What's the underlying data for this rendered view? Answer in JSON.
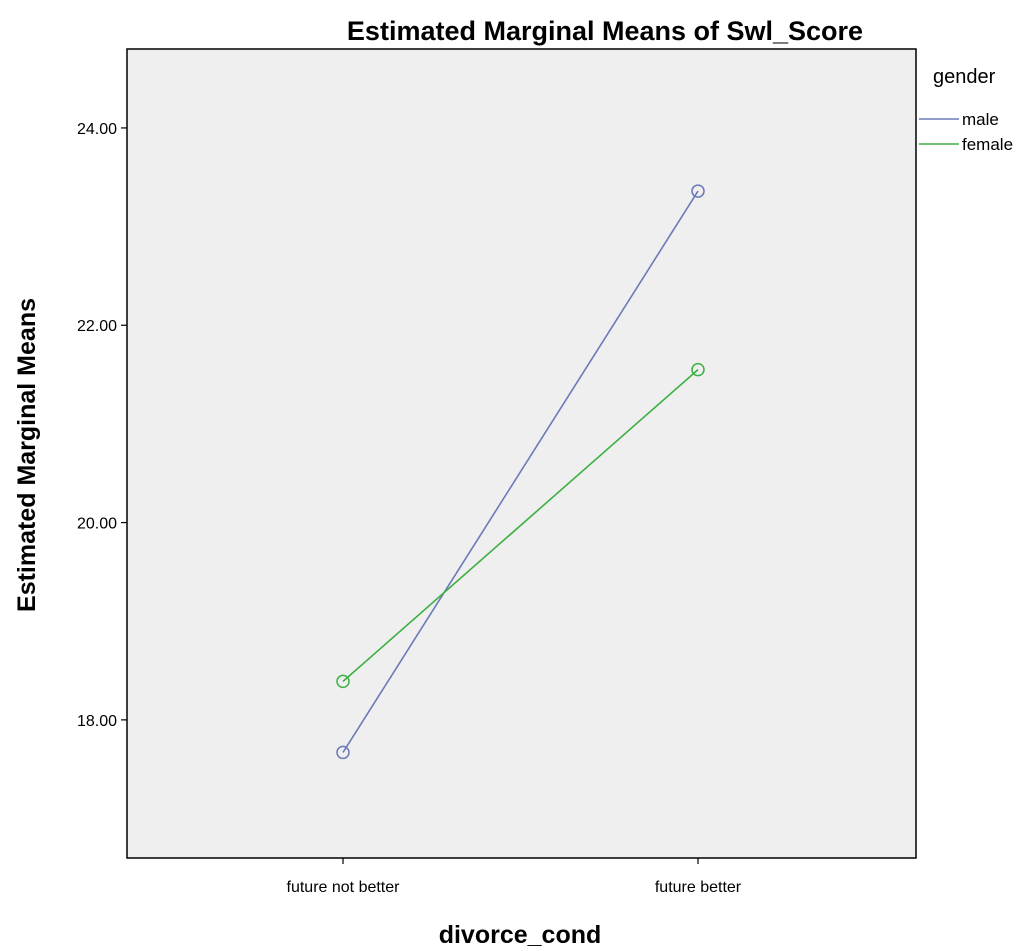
{
  "chart_data": {
    "type": "line",
    "title": "Estimated Marginal Means of Swl_Score",
    "xlabel": "divorce_cond",
    "ylabel": "Estimated Marginal Means",
    "categories": [
      "future not better",
      "future better"
    ],
    "yticks": [
      "18.00",
      "20.00",
      "22.00",
      "24.00"
    ],
    "ylim": [
      16.6,
      24.8
    ],
    "grid": false,
    "legend": {
      "title": "gender",
      "placement": "right"
    },
    "series": [
      {
        "name": "male",
        "values": [
          17.67,
          23.36
        ],
        "color": "#6b7ab8"
      },
      {
        "name": "female",
        "values": [
          18.39,
          21.55
        ],
        "color": "#3cb043"
      }
    ],
    "background": "#efefef"
  }
}
